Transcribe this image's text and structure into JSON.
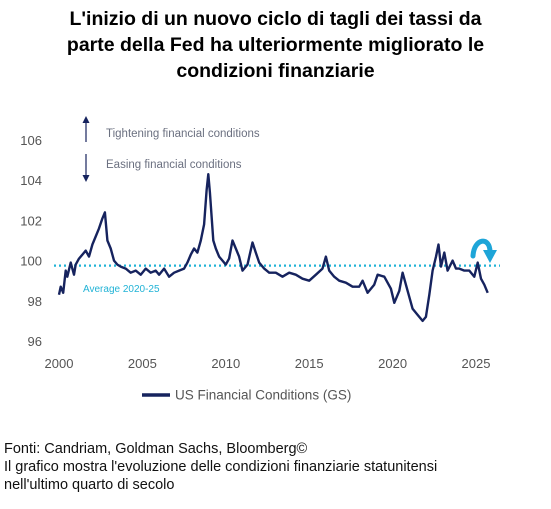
{
  "title_lines": [
    "L'inizio di un nuovo ciclo di tagli dei tassi da",
    "parte della Fed ha ulteriormente migliorato le",
    "condizioni finanziarie"
  ],
  "footer": {
    "source": "Fonti: Candriam, Goldman Sachs, Bloomberg©",
    "caption_lines": [
      "Il grafico mostra l'evoluzione delle condizioni finanziarie statunitensi",
      "nell'ultimo quarto di secolo"
    ]
  },
  "colors": {
    "series": "#16235e",
    "average_line": "#21b3d6",
    "arrow_turn": "#1ea5d8",
    "axis_text": "#555555"
  },
  "chart_data": {
    "type": "line",
    "title": "",
    "xlabel": "",
    "ylabel": "",
    "xlim": [
      2000,
      2025.9
    ],
    "ylim": [
      96,
      107
    ],
    "x_ticks": [
      2000,
      2005,
      2010,
      2015,
      2020,
      2025
    ],
    "y_ticks": [
      96,
      98,
      100,
      102,
      104,
      106
    ],
    "grid": false,
    "legend_position": "bottom-center",
    "annotations": {
      "tightening": "Tightening financial conditions",
      "easing": "Easing financial conditions",
      "average_label": "Average 2020-25"
    },
    "average_value": 99.75,
    "series": [
      {
        "name": "US Financial Conditions (GS)",
        "x": [
          2000.0,
          2000.1,
          2000.25,
          2000.4,
          2000.5,
          2000.7,
          2000.9,
          2001.0,
          2001.2,
          2001.4,
          2001.6,
          2001.8,
          2002.0,
          2002.2,
          2002.4,
          2002.6,
          2002.75,
          2002.9,
          2003.1,
          2003.3,
          2003.5,
          2003.7,
          2004.0,
          2004.3,
          2004.6,
          2004.9,
          2005.2,
          2005.5,
          2005.8,
          2006.0,
          2006.3,
          2006.6,
          2006.9,
          2007.2,
          2007.5,
          2007.7,
          2007.9,
          2008.1,
          2008.3,
          2008.5,
          2008.7,
          2008.85,
          2008.95,
          2009.05,
          2009.15,
          2009.25,
          2009.4,
          2009.6,
          2009.8,
          2010.0,
          2010.2,
          2010.4,
          2010.6,
          2010.8,
          2011.0,
          2011.3,
          2011.6,
          2011.8,
          2012.0,
          2012.3,
          2012.6,
          2013.0,
          2013.4,
          2013.8,
          2014.2,
          2014.6,
          2015.0,
          2015.4,
          2015.8,
          2016.0,
          2016.2,
          2016.5,
          2016.8,
          2017.2,
          2017.6,
          2018.0,
          2018.2,
          2018.5,
          2018.9,
          2019.1,
          2019.5,
          2019.9,
          2020.1,
          2020.25,
          2020.4,
          2020.6,
          2020.9,
          2021.2,
          2021.5,
          2021.8,
          2022.0,
          2022.2,
          2022.4,
          2022.6,
          2022.75,
          2022.9,
          2023.1,
          2023.3,
          2023.6,
          2023.8,
          2024.0,
          2024.3,
          2024.6,
          2024.9,
          2025.1,
          2025.3,
          2025.5,
          2025.7
        ],
        "values": [
          98.3,
          98.7,
          98.4,
          99.5,
          99.2,
          99.9,
          99.3,
          99.8,
          100.1,
          100.3,
          100.5,
          100.2,
          100.8,
          101.2,
          101.6,
          102.1,
          102.4,
          101.0,
          100.6,
          100.0,
          99.8,
          99.7,
          99.6,
          99.4,
          99.5,
          99.3,
          99.6,
          99.4,
          99.5,
          99.3,
          99.6,
          99.2,
          99.4,
          99.5,
          99.6,
          99.9,
          100.3,
          100.6,
          100.4,
          101.0,
          101.8,
          103.5,
          104.3,
          103.4,
          102.2,
          101.0,
          100.6,
          100.2,
          100.0,
          99.8,
          100.1,
          101.0,
          100.6,
          100.2,
          99.5,
          99.8,
          100.9,
          100.4,
          99.9,
          99.6,
          99.4,
          99.4,
          99.2,
          99.4,
          99.3,
          99.1,
          99.0,
          99.3,
          99.6,
          100.2,
          99.5,
          99.2,
          99.0,
          98.9,
          98.7,
          98.7,
          99.0,
          98.4,
          98.8,
          99.3,
          99.2,
          98.6,
          97.9,
          98.2,
          98.5,
          99.4,
          98.5,
          97.6,
          97.3,
          97.0,
          97.2,
          98.3,
          99.5,
          100.2,
          100.8,
          99.7,
          100.4,
          99.5,
          100.0,
          99.6,
          99.6,
          99.5,
          99.5,
          99.2,
          99.9,
          99.1,
          98.8,
          98.4
        ]
      }
    ]
  }
}
